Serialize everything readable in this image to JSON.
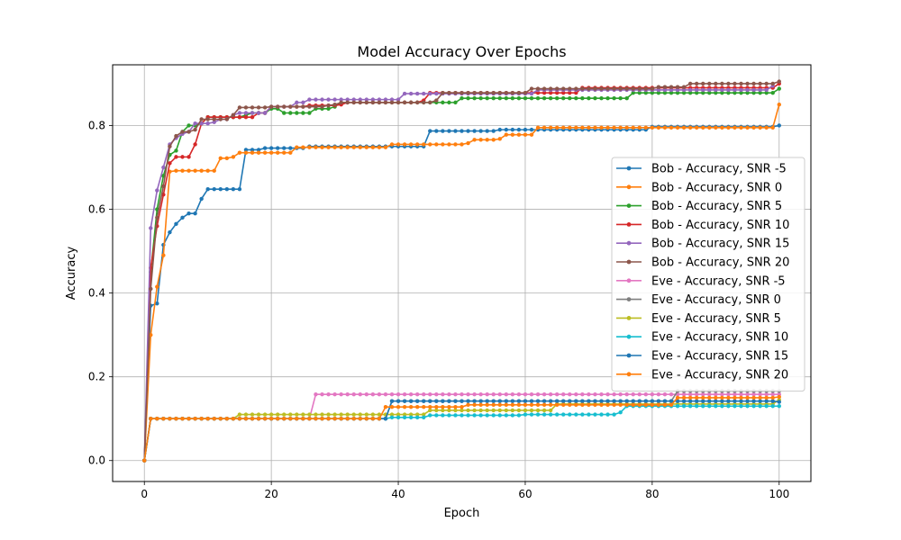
{
  "chart_data": {
    "type": "line",
    "title": "Model Accuracy Over Epochs",
    "xlabel": "Epoch",
    "ylabel": "Accuracy",
    "xlim": [
      -5,
      105
    ],
    "ylim": [
      -0.05,
      0.945
    ],
    "xticks": [
      0,
      20,
      40,
      60,
      80,
      100
    ],
    "yticks": [
      0.0,
      0.2,
      0.4,
      0.6,
      0.8
    ],
    "grid": true,
    "legend_position": "center-right",
    "series": [
      {
        "name": "Bob - Accuracy, SNR -5",
        "color": "#1f77b4",
        "points": [
          [
            0,
            0
          ],
          [
            1,
            0.37
          ],
          [
            2,
            0.375
          ],
          [
            3,
            0.515
          ],
          [
            4,
            0.545
          ],
          [
            5,
            0.565
          ],
          [
            6,
            0.58
          ],
          [
            7,
            0.59
          ],
          [
            8,
            0.59
          ],
          [
            9,
            0.625
          ],
          [
            10,
            0.648
          ],
          [
            15,
            0.648
          ],
          [
            16,
            0.742
          ],
          [
            18,
            0.742
          ],
          [
            19,
            0.746
          ],
          [
            25,
            0.746
          ],
          [
            26,
            0.75
          ],
          [
            44,
            0.75
          ],
          [
            45,
            0.787
          ],
          [
            55,
            0.787
          ],
          [
            56,
            0.79
          ],
          [
            79,
            0.79
          ],
          [
            80,
            0.797
          ],
          [
            100,
            0.8
          ]
        ]
      },
      {
        "name": "Bob - Accuracy, SNR 0",
        "color": "#ff7f0e",
        "points": [
          [
            0,
            0
          ],
          [
            1,
            0.3
          ],
          [
            2,
            0.415
          ],
          [
            3,
            0.49
          ],
          [
            4,
            0.69
          ],
          [
            5,
            0.692
          ],
          [
            11,
            0.692
          ],
          [
            12,
            0.722
          ],
          [
            14,
            0.725
          ],
          [
            15,
            0.735
          ],
          [
            23,
            0.735
          ],
          [
            24,
            0.748
          ],
          [
            38,
            0.748
          ],
          [
            39,
            0.755
          ],
          [
            51,
            0.758
          ],
          [
            52,
            0.766
          ],
          [
            56,
            0.768
          ],
          [
            57,
            0.778
          ],
          [
            61,
            0.778
          ],
          [
            62,
            0.795
          ],
          [
            99,
            0.795
          ],
          [
            100,
            0.85
          ]
        ]
      },
      {
        "name": "Bob - Accuracy, SNR 5",
        "color": "#2ca02c",
        "points": [
          [
            0,
            0
          ],
          [
            1,
            0.45
          ],
          [
            2,
            0.6
          ],
          [
            3,
            0.68
          ],
          [
            4,
            0.73
          ],
          [
            5,
            0.74
          ],
          [
            6,
            0.785
          ],
          [
            7,
            0.8
          ],
          [
            9,
            0.805
          ],
          [
            10,
            0.82
          ],
          [
            16,
            0.825
          ],
          [
            17,
            0.83
          ],
          [
            19,
            0.83
          ],
          [
            20,
            0.84
          ],
          [
            22,
            0.83
          ],
          [
            26,
            0.83
          ],
          [
            27,
            0.84
          ],
          [
            30,
            0.845
          ],
          [
            31,
            0.855
          ],
          [
            49,
            0.855
          ],
          [
            50,
            0.865
          ],
          [
            76,
            0.865
          ],
          [
            77,
            0.878
          ],
          [
            99,
            0.878
          ],
          [
            100,
            0.888
          ]
        ]
      },
      {
        "name": "Bob - Accuracy, SNR 10",
        "color": "#d62728",
        "points": [
          [
            0,
            0
          ],
          [
            1,
            0.46
          ],
          [
            2,
            0.56
          ],
          [
            3,
            0.635
          ],
          [
            4,
            0.71
          ],
          [
            5,
            0.725
          ],
          [
            7,
            0.725
          ],
          [
            8,
            0.755
          ],
          [
            9,
            0.805
          ],
          [
            10,
            0.82
          ],
          [
            14,
            0.82
          ],
          [
            15,
            0.82
          ],
          [
            18,
            0.83
          ],
          [
            20,
            0.845
          ],
          [
            25,
            0.845
          ],
          [
            26,
            0.848
          ],
          [
            31,
            0.85
          ],
          [
            32,
            0.855
          ],
          [
            44,
            0.86
          ],
          [
            45,
            0.878
          ],
          [
            68,
            0.878
          ],
          [
            69,
            0.89
          ],
          [
            100,
            0.9
          ]
        ]
      },
      {
        "name": "Bob - Accuracy, SNR 15",
        "color": "#9467bd",
        "points": [
          [
            0,
            0
          ],
          [
            1,
            0.555
          ],
          [
            2,
            0.645
          ],
          [
            3,
            0.7
          ],
          [
            4,
            0.755
          ],
          [
            5,
            0.77
          ],
          [
            6,
            0.78
          ],
          [
            7,
            0.785
          ],
          [
            8,
            0.805
          ],
          [
            11,
            0.808
          ],
          [
            12,
            0.815
          ],
          [
            14,
            0.825
          ],
          [
            15,
            0.83
          ],
          [
            20,
            0.845
          ],
          [
            24,
            0.855
          ],
          [
            26,
            0.862
          ],
          [
            40,
            0.862
          ],
          [
            41,
            0.876
          ],
          [
            61,
            0.876
          ],
          [
            62,
            0.885
          ],
          [
            99,
            0.895
          ]
        ]
      },
      {
        "name": "Bob - Accuracy, SNR 20",
        "color": "#8c564b",
        "points": [
          [
            0,
            0
          ],
          [
            1,
            0.41
          ],
          [
            2,
            0.58
          ],
          [
            3,
            0.655
          ],
          [
            4,
            0.75
          ],
          [
            5,
            0.775
          ],
          [
            6,
            0.785
          ],
          [
            8,
            0.79
          ],
          [
            9,
            0.815
          ],
          [
            14,
            0.825
          ],
          [
            15,
            0.843
          ],
          [
            19,
            0.843
          ],
          [
            20,
            0.845
          ],
          [
            29,
            0.848
          ],
          [
            30,
            0.85
          ],
          [
            31,
            0.855
          ],
          [
            46,
            0.86
          ],
          [
            47,
            0.878
          ],
          [
            60,
            0.878
          ],
          [
            61,
            0.888
          ],
          [
            80,
            0.888
          ],
          [
            81,
            0.892
          ],
          [
            86,
            0.9
          ],
          [
            99,
            0.9
          ],
          [
            100,
            0.905
          ]
        ]
      },
      {
        "name": "Eve - Accuracy, SNR -5",
        "color": "#e377c2",
        "points": [
          [
            0,
            0
          ],
          [
            1,
            0.1
          ],
          [
            26,
            0.1
          ],
          [
            27,
            0.158
          ],
          [
            100,
            0.158
          ]
        ]
      },
      {
        "name": "Eve - Accuracy, SNR 0",
        "color": "#7f7f7f",
        "points": [
          [
            0,
            0
          ],
          [
            1,
            0.1
          ],
          [
            38,
            0.1
          ],
          [
            39,
            0.142
          ],
          [
            83,
            0.142
          ],
          [
            84,
            0.166
          ],
          [
            100,
            0.166
          ]
        ]
      },
      {
        "name": "Eve - Accuracy, SNR 5",
        "color": "#bcbd22",
        "points": [
          [
            0,
            0
          ],
          [
            1,
            0.1
          ],
          [
            14,
            0.1
          ],
          [
            15,
            0.11
          ],
          [
            44,
            0.11
          ],
          [
            45,
            0.12
          ],
          [
            64,
            0.12
          ],
          [
            65,
            0.135
          ],
          [
            100,
            0.145
          ]
        ]
      },
      {
        "name": "Eve - Accuracy, SNR 10",
        "color": "#17becf",
        "points": [
          [
            0,
            0
          ],
          [
            1,
            0.1
          ],
          [
            38,
            0.1
          ],
          [
            39,
            0.103
          ],
          [
            45,
            0.108
          ],
          [
            60,
            0.11
          ],
          [
            75,
            0.115
          ],
          [
            76,
            0.13
          ],
          [
            100,
            0.13
          ]
        ]
      },
      {
        "name": "Eve - Accuracy, SNR 15",
        "color": "#1f77b4",
        "points": [
          [
            0,
            0
          ],
          [
            1,
            0.1
          ],
          [
            37,
            0.1
          ],
          [
            38,
            0.1
          ],
          [
            39,
            0.142
          ],
          [
            75,
            0.142
          ],
          [
            100,
            0.14
          ]
        ]
      },
      {
        "name": "Eve - Accuracy, SNR 20",
        "color": "#ff7f0e",
        "points": [
          [
            0,
            0
          ],
          [
            1,
            0.1
          ],
          [
            37,
            0.1
          ],
          [
            38,
            0.128
          ],
          [
            50,
            0.128
          ],
          [
            51,
            0.133
          ],
          [
            83,
            0.133
          ],
          [
            84,
            0.15
          ],
          [
            100,
            0.152
          ]
        ]
      }
    ]
  }
}
